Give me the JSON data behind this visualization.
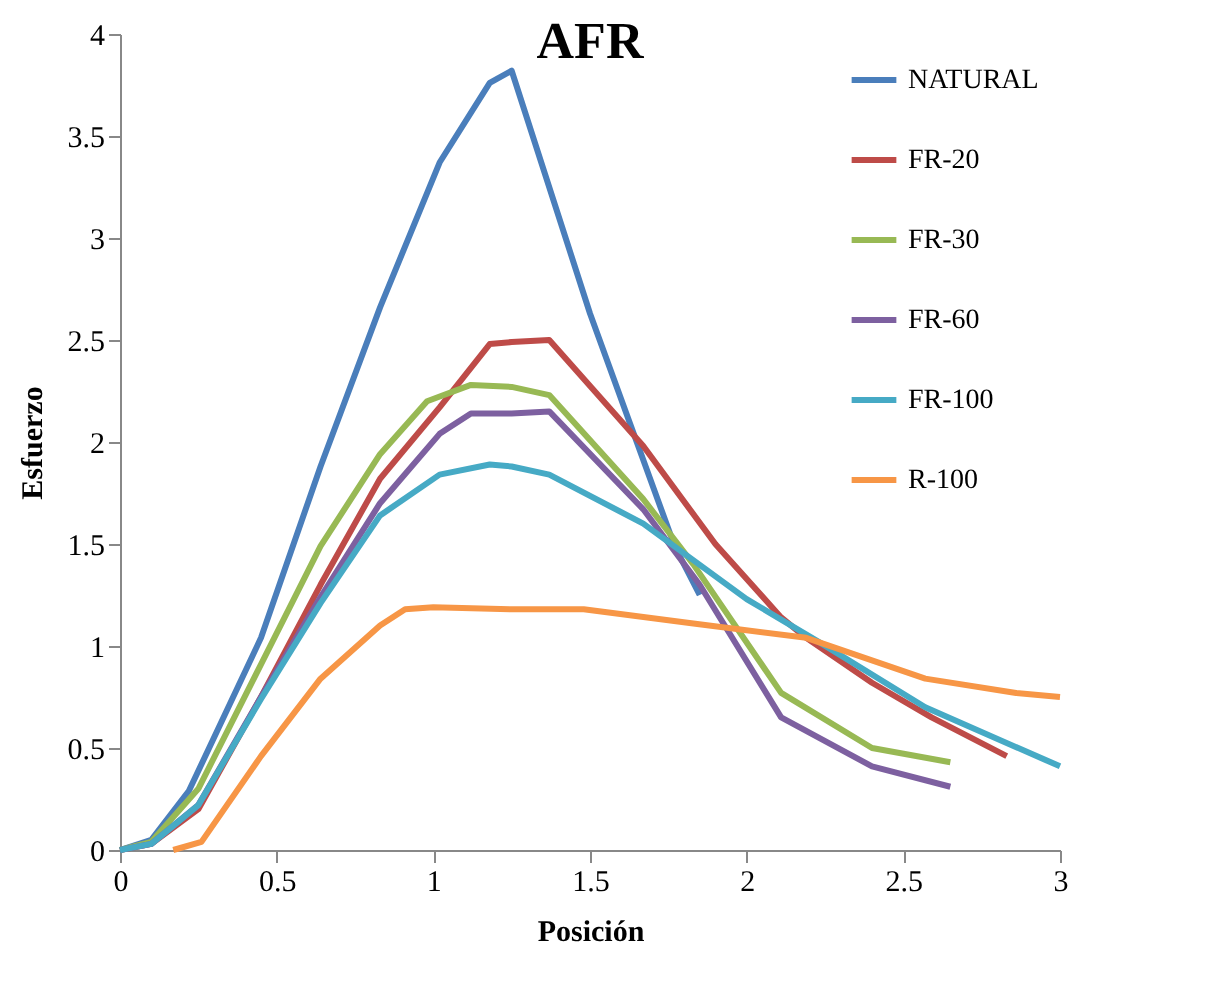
{
  "chart_data": {
    "type": "line",
    "title": "AFR",
    "xlabel": "Posición",
    "ylabel": "Esfuerzo",
    "xlim": [
      0,
      3
    ],
    "ylim": [
      0,
      4
    ],
    "xticks": [
      0,
      0.5,
      1,
      1.5,
      2,
      2.5,
      3
    ],
    "yticks": [
      0,
      0.5,
      1,
      1.5,
      2,
      2.5,
      3,
      3.5,
      4
    ],
    "grid": false,
    "legend": "top right",
    "marker": "none",
    "line_style": "solid",
    "series": [
      {
        "name": "NATURAL",
        "color": "#4a7ebb",
        "x": [
          0,
          0.1,
          0.22,
          0.45,
          0.64,
          0.83,
          1.02,
          1.18,
          1.25,
          1.5,
          1.77,
          1.85
        ],
        "values": [
          0,
          0.05,
          0.29,
          1.04,
          1.88,
          2.66,
          3.37,
          3.76,
          3.82,
          2.63,
          1.49,
          1.25
        ]
      },
      {
        "name": "FR-20",
        "color": "#be4b48",
        "x": [
          0,
          0.1,
          0.25,
          0.45,
          0.64,
          0.83,
          1.02,
          1.18,
          1.25,
          1.37,
          1.67,
          1.9,
          2.11,
          2.19,
          2.4,
          2.59,
          2.83
        ],
        "values": [
          0,
          0.03,
          0.2,
          0.75,
          1.3,
          1.82,
          2.17,
          2.48,
          2.49,
          2.5,
          1.98,
          1.5,
          1.14,
          1.04,
          0.82,
          0.65,
          0.46
        ]
      },
      {
        "name": "FR-30",
        "color": "#98b954",
        "x": [
          0,
          0.1,
          0.25,
          0.45,
          0.64,
          0.83,
          0.98,
          1.12,
          1.25,
          1.37,
          1.67,
          1.83,
          2.11,
          2.4,
          2.65
        ],
        "values": [
          0,
          0.04,
          0.3,
          0.91,
          1.49,
          1.94,
          2.2,
          2.28,
          2.27,
          2.23,
          1.72,
          1.4,
          0.77,
          0.5,
          0.43
        ]
      },
      {
        "name": "FR-60",
        "color": "#7d60a0",
        "x": [
          0,
          0.1,
          0.25,
          0.45,
          0.64,
          0.83,
          1.02,
          1.12,
          1.25,
          1.37,
          1.67,
          1.85,
          2.11,
          2.4,
          2.65
        ],
        "values": [
          0,
          0.03,
          0.22,
          0.75,
          1.24,
          1.7,
          2.04,
          2.14,
          2.14,
          2.15,
          1.67,
          1.3,
          0.65,
          0.41,
          0.31
        ]
      },
      {
        "name": "FR-100",
        "color": "#46aac5",
        "x": [
          0,
          0.1,
          0.25,
          0.45,
          0.64,
          0.83,
          1.02,
          1.18,
          1.25,
          1.37,
          1.67,
          2.0,
          2.23,
          2.57,
          3.0
        ],
        "values": [
          0,
          0.03,
          0.22,
          0.74,
          1.21,
          1.64,
          1.84,
          1.89,
          1.88,
          1.84,
          1.6,
          1.23,
          1.02,
          0.7,
          0.41
        ]
      },
      {
        "name": "R-100",
        "color": "#f79646",
        "x": [
          0.17,
          0.26,
          0.45,
          0.64,
          0.83,
          0.91,
          1.0,
          1.25,
          1.48,
          1.83,
          2.19,
          2.57,
          2.86,
          3.0
        ],
        "values": [
          0,
          0.04,
          0.46,
          0.84,
          1.1,
          1.18,
          1.19,
          1.18,
          1.18,
          1.11,
          1.04,
          0.84,
          0.77,
          0.75
        ]
      }
    ]
  }
}
